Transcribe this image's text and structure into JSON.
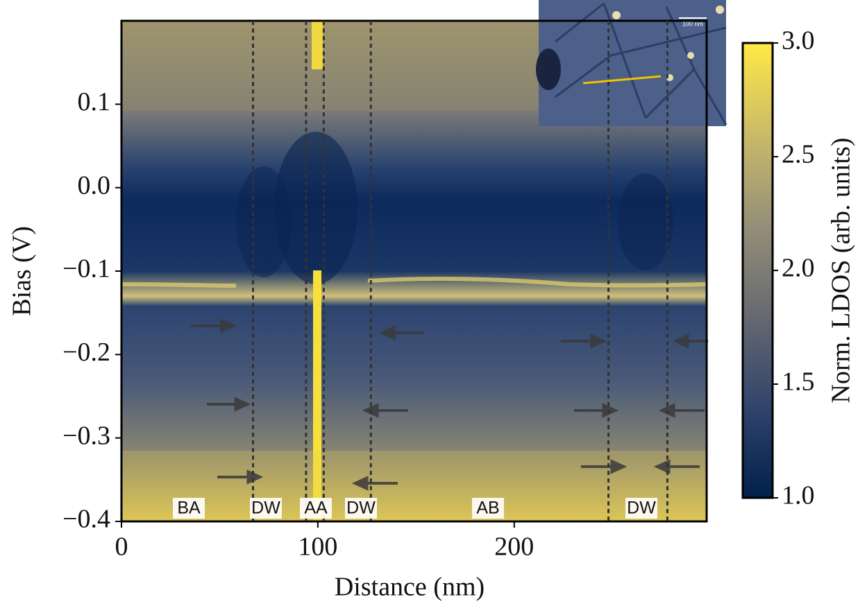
{
  "chart_data": {
    "type": "heatmap",
    "xlabel": "Distance (nm)",
    "ylabel": "Bias (V)",
    "xlim": [
      0,
      298
    ],
    "ylim": [
      -0.4,
      0.2
    ],
    "xticks": [
      0,
      100,
      200
    ],
    "yticks": [
      {
        "value": -0.4,
        "label": "−0.4"
      },
      {
        "value": -0.3,
        "label": "−0.3"
      },
      {
        "value": -0.2,
        "label": "−0.2"
      },
      {
        "value": -0.1,
        "label": "−0.1"
      },
      {
        "value": 0,
        "label": "0.0"
      },
      0.1
    ],
    "colorbar": {
      "label": "Norm. LDOS (arb. units)",
      "lim": [
        1.0,
        3.0
      ],
      "ticks": [
        {
          "value": 1.0,
          "label": "1.0"
        },
        1.5,
        {
          "value": 2.0,
          "label": "2.0"
        },
        2.5,
        {
          "value": 3.0,
          "label": "3.0"
        }
      ],
      "colors": [
        "#00204c",
        "#31446b",
        "#666970",
        "#958f78",
        "#cbba69",
        "#ffe945"
      ]
    },
    "dashed_lines_x": [
      67,
      94,
      103,
      127,
      248,
      278
    ],
    "region_labels": [
      "BA",
      "DW",
      "AA",
      "DW",
      "AB",
      "DW"
    ],
    "inset": {
      "scale_bar": "100 nm"
    }
  }
}
